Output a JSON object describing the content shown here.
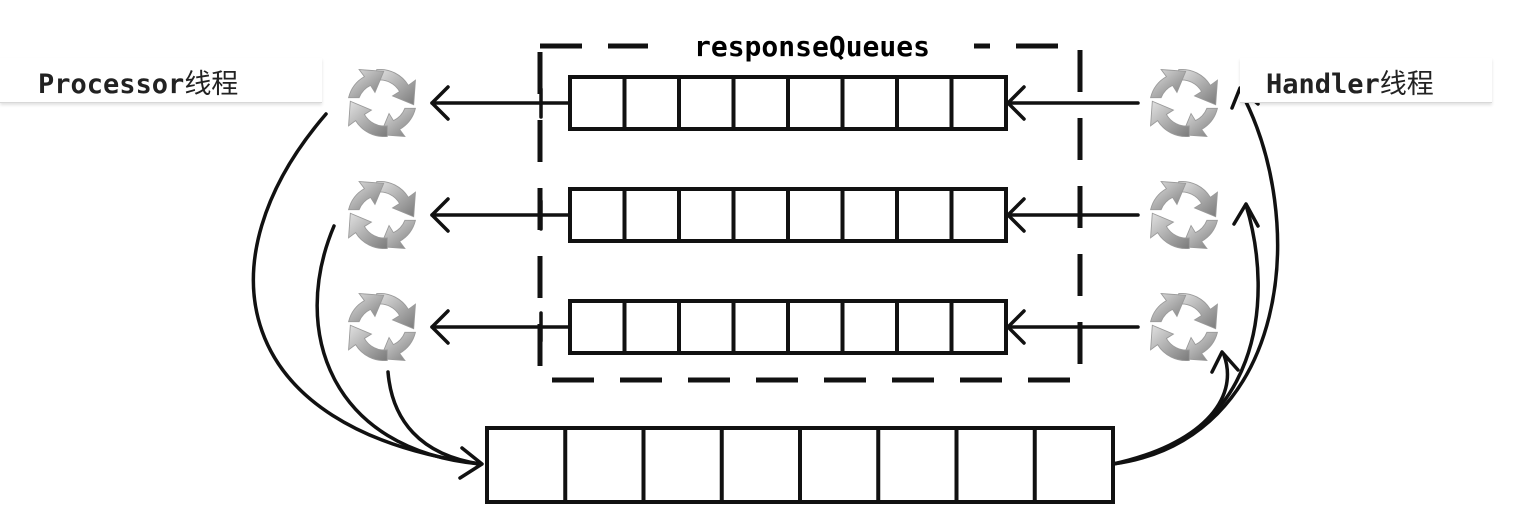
{
  "labels": {
    "processor_code": "Processor",
    "processor_cn": "线程",
    "handler_code": "Handler",
    "handler_cn": "线程",
    "response_queues": "responseQueues"
  },
  "response_queue_count": 3,
  "response_queue_slots": 8,
  "request_queue_slots": 8,
  "colors": {
    "stroke": "#111111",
    "thread_icon_light": "#dddddd",
    "thread_icon_dark": "#7a7a7a",
    "background": "#ffffff"
  },
  "icons": {
    "thread": "circular-arrows-icon"
  }
}
